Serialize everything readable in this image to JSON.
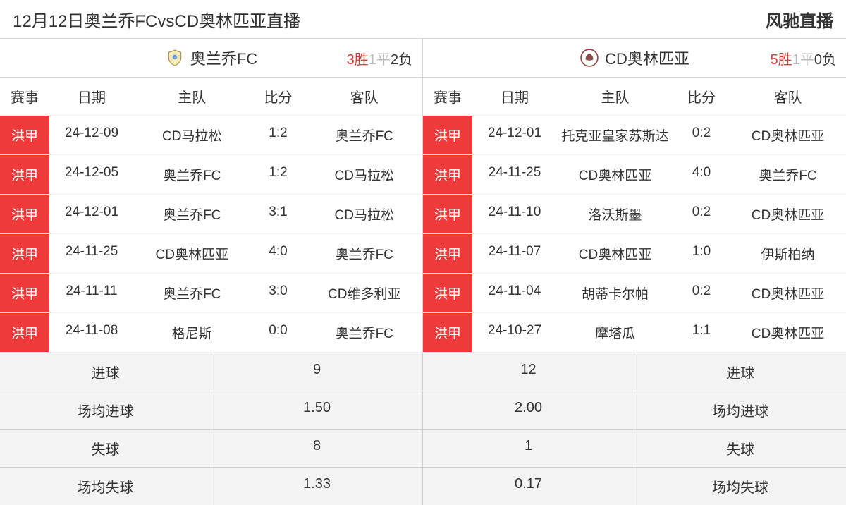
{
  "topbar": {
    "title": "12月12日奥兰乔FCvsCD奥林匹亚直播",
    "brand": "风驰直播"
  },
  "columns": {
    "league": "赛事",
    "date": "日期",
    "home": "主队",
    "score": "比分",
    "away": "客队"
  },
  "left": {
    "team_name": "奥兰乔FC",
    "record_win": "3胜",
    "record_draw": "1平",
    "record_loss": "2负",
    "rows": [
      {
        "league": "洪甲",
        "date": "24-12-09",
        "home": "CD马拉松",
        "score": "1:2",
        "away": "奥兰乔FC"
      },
      {
        "league": "洪甲",
        "date": "24-12-05",
        "home": "奥兰乔FC",
        "score": "1:2",
        "away": "CD马拉松"
      },
      {
        "league": "洪甲",
        "date": "24-12-01",
        "home": "奥兰乔FC",
        "score": "3:1",
        "away": "CD马拉松"
      },
      {
        "league": "洪甲",
        "date": "24-11-25",
        "home": "CD奥林匹亚",
        "score": "4:0",
        "away": "奥兰乔FC"
      },
      {
        "league": "洪甲",
        "date": "24-11-11",
        "home": "奥兰乔FC",
        "score": "3:0",
        "away": "CD维多利亚"
      },
      {
        "league": "洪甲",
        "date": "24-11-08",
        "home": "格尼斯",
        "score": "0:0",
        "away": "奥兰乔FC"
      }
    ]
  },
  "right": {
    "team_name": "CD奥林匹亚",
    "record_win": "5胜",
    "record_draw": "1平",
    "record_loss": "0负",
    "rows": [
      {
        "league": "洪甲",
        "date": "24-12-01",
        "home": "托克亚皇家苏斯达",
        "score": "0:2",
        "away": "CD奥林匹亚"
      },
      {
        "league": "洪甲",
        "date": "24-11-25",
        "home": "CD奥林匹亚",
        "score": "4:0",
        "away": "奥兰乔FC"
      },
      {
        "league": "洪甲",
        "date": "24-11-10",
        "home": "洛沃斯墨",
        "score": "0:2",
        "away": "CD奥林匹亚"
      },
      {
        "league": "洪甲",
        "date": "24-11-07",
        "home": "CD奥林匹亚",
        "score": "1:0",
        "away": "伊斯柏纳"
      },
      {
        "league": "洪甲",
        "date": "24-11-04",
        "home": "胡蒂卡尔帕",
        "score": "0:2",
        "away": "CD奥林匹亚"
      },
      {
        "league": "洪甲",
        "date": "24-10-27",
        "home": "摩塔瓜",
        "score": "1:1",
        "away": "CD奥林匹亚"
      }
    ]
  },
  "summary": {
    "labels": {
      "goals": "进球",
      "avg_goals": "场均进球",
      "conceded": "失球",
      "avg_conceded": "场均失球"
    },
    "left_goals": "9",
    "left_avg_goals": "1.50",
    "left_conceded": "8",
    "left_avg_conceded": "1.33",
    "right_goals": "12",
    "right_avg_goals": "2.00",
    "right_conceded": "1",
    "right_avg_conceded": "0.17"
  },
  "colors": {
    "league_bg": "#ee3a3a",
    "win_color": "#e23b3b",
    "draw_color": "#bbbbbb",
    "border": "#d8d8d8",
    "summary_bg": "#f3f3f3"
  }
}
